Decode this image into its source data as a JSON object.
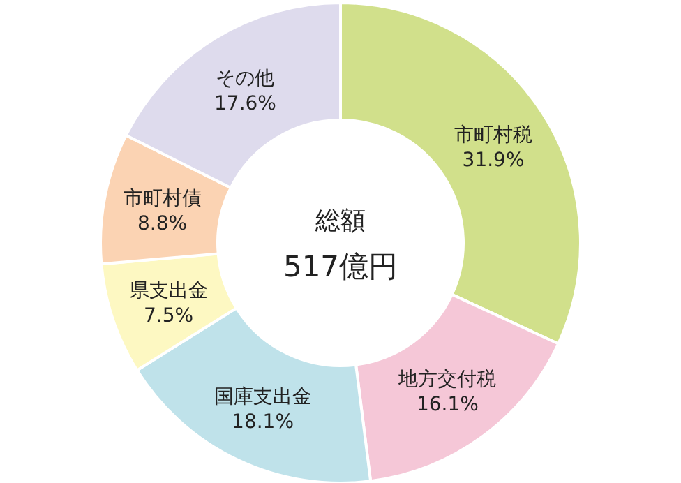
{
  "chart_data": {
    "type": "donut",
    "categories": [
      "市町村税",
      "地方交付税",
      "国庫支出金",
      "県支出金",
      "市町村債",
      "その他"
    ],
    "values": [
      31.9,
      16.1,
      18.1,
      7.5,
      8.8,
      17.6
    ],
    "value_labels": [
      "31.9%",
      "16.1%",
      "18.1%",
      "7.5%",
      "8.8%",
      "17.6%"
    ],
    "colors": [
      "#d1e08b",
      "#f5c7d7",
      "#bfe2ea",
      "#fdf8c2",
      "#fbd3b3",
      "#dedbed"
    ],
    "annotations": [
      "総額",
      "517億円"
    ],
    "legend": false
  }
}
